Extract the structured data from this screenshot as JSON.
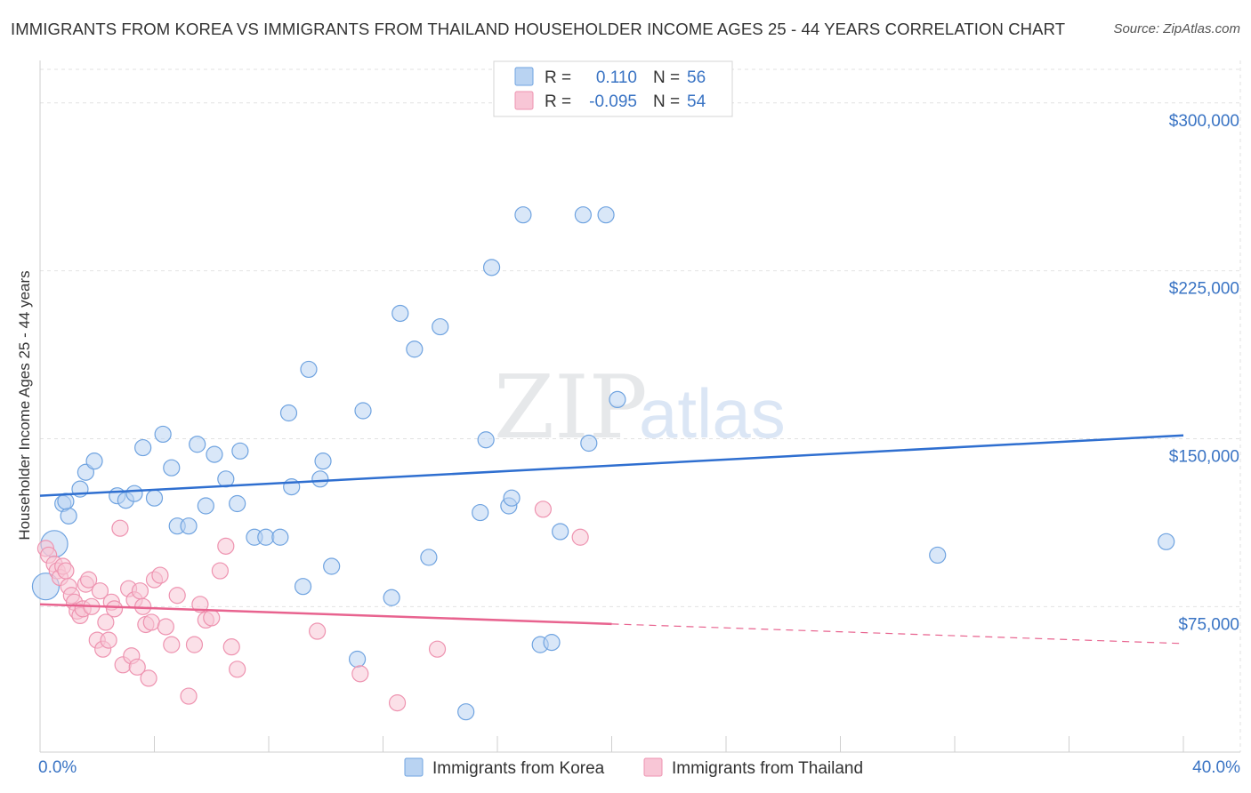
{
  "title": "IMMIGRANTS FROM KOREA VS IMMIGRANTS FROM THAILAND HOUSEHOLDER INCOME AGES 25 - 44 YEARS CORRELATION CHART",
  "source": "Source: ZipAtlas.com",
  "watermark": {
    "zip": "ZIP",
    "atlas": "atlas"
  },
  "legend": {
    "r_label": "R =",
    "n_label": "N =",
    "rows": [
      {
        "r": "0.110",
        "n": "56"
      },
      {
        "r": "-0.095",
        "n": "54"
      }
    ]
  },
  "chart_data": {
    "type": "scatter",
    "title": "IMMIGRANTS FROM KOREA VS IMMIGRANTS FROM THAILAND HOUSEHOLDER INCOME AGES 25 - 44 YEARS CORRELATION CHART",
    "xlabel": "",
    "ylabel": "Householder Income Ages 25 - 44 years",
    "xlim": [
      0,
      40
    ],
    "ylim": [
      10000,
      315000
    ],
    "x_tick_labels": {
      "min": "0.0%",
      "max": "40.0%"
    },
    "y_ticks": [
      {
        "value": 75000,
        "label": "$75,000"
      },
      {
        "value": 150000,
        "label": "$150,000"
      },
      {
        "value": 225000,
        "label": "$225,000"
      },
      {
        "value": 300000,
        "label": "$300,000"
      }
    ],
    "grid": true,
    "legend_position": "top-center",
    "series": [
      {
        "name": "Immigrants from Korea",
        "color": "#6fa3e0",
        "fill": "#b9d3f2",
        "line_color": "#2f6fd0",
        "r": 0.11,
        "n": 56,
        "trend": {
          "x": [
            0,
            40
          ],
          "y": [
            124500,
            151500
          ],
          "dashed_from": null
        },
        "points": [
          [
            0.2,
            84000
          ],
          [
            0.5,
            103000
          ],
          [
            0.8,
            121000
          ],
          [
            1.0,
            115500
          ],
          [
            0.9,
            122000
          ],
          [
            1.4,
            127500
          ],
          [
            1.6,
            135000
          ],
          [
            1.9,
            140000
          ],
          [
            2.7,
            124500
          ],
          [
            3.0,
            122500
          ],
          [
            3.3,
            125500
          ],
          [
            3.6,
            146000
          ],
          [
            4.0,
            123500
          ],
          [
            4.3,
            152000
          ],
          [
            4.6,
            137000
          ],
          [
            4.8,
            111000
          ],
          [
            5.2,
            111000
          ],
          [
            5.5,
            147500
          ],
          [
            5.8,
            120000
          ],
          [
            6.1,
            143000
          ],
          [
            6.5,
            132000
          ],
          [
            6.9,
            121000
          ],
          [
            7.0,
            144500
          ],
          [
            7.5,
            106000
          ],
          [
            7.9,
            106000
          ],
          [
            8.4,
            106000
          ],
          [
            8.7,
            161500
          ],
          [
            8.8,
            128500
          ],
          [
            9.2,
            84000
          ],
          [
            9.4,
            181000
          ],
          [
            9.8,
            132000
          ],
          [
            9.9,
            140000
          ],
          [
            10.2,
            93000
          ],
          [
            11.1,
            51500
          ],
          [
            11.3,
            162500
          ],
          [
            12.3,
            79000
          ],
          [
            12.6,
            206000
          ],
          [
            13.1,
            190000
          ],
          [
            13.6,
            97000
          ],
          [
            14.0,
            200000
          ],
          [
            14.9,
            28000
          ],
          [
            15.4,
            117000
          ],
          [
            15.6,
            149500
          ],
          [
            15.8,
            226500
          ],
          [
            16.4,
            120000
          ],
          [
            16.5,
            123500
          ],
          [
            16.9,
            250000
          ],
          [
            17.5,
            58000
          ],
          [
            17.9,
            59000
          ],
          [
            18.2,
            108500
          ],
          [
            19.0,
            250000
          ],
          [
            19.2,
            148000
          ],
          [
            19.8,
            250000
          ],
          [
            20.2,
            167500
          ],
          [
            31.4,
            98000
          ],
          [
            39.4,
            104000
          ]
        ]
      },
      {
        "name": "Immigrants from Thailand",
        "color": "#ee93b0",
        "fill": "#f8c6d6",
        "line_color": "#e8638f",
        "r": -0.095,
        "n": 54,
        "trend": {
          "x": [
            0,
            40
          ],
          "y": [
            76000,
            58500
          ],
          "solid_until": 20
        },
        "points": [
          [
            0.2,
            101000
          ],
          [
            0.3,
            98000
          ],
          [
            0.5,
            94000
          ],
          [
            0.6,
            91000
          ],
          [
            0.7,
            88000
          ],
          [
            0.8,
            93000
          ],
          [
            0.9,
            91000
          ],
          [
            1.0,
            84000
          ],
          [
            1.1,
            80000
          ],
          [
            1.2,
            77000
          ],
          [
            1.3,
            73000
          ],
          [
            1.4,
            71000
          ],
          [
            1.5,
            74000
          ],
          [
            1.6,
            85000
          ],
          [
            1.7,
            87000
          ],
          [
            1.8,
            75000
          ],
          [
            2.0,
            60000
          ],
          [
            2.1,
            82000
          ],
          [
            2.2,
            56000
          ],
          [
            2.3,
            68000
          ],
          [
            2.4,
            60000
          ],
          [
            2.5,
            77000
          ],
          [
            2.6,
            74000
          ],
          [
            2.8,
            110000
          ],
          [
            2.9,
            49000
          ],
          [
            3.1,
            83000
          ],
          [
            3.2,
            53000
          ],
          [
            3.3,
            78000
          ],
          [
            3.4,
            48000
          ],
          [
            3.5,
            82000
          ],
          [
            3.6,
            75000
          ],
          [
            3.7,
            67000
          ],
          [
            3.8,
            43000
          ],
          [
            3.9,
            68000
          ],
          [
            4.0,
            87000
          ],
          [
            4.2,
            89000
          ],
          [
            4.4,
            66000
          ],
          [
            4.6,
            58000
          ],
          [
            4.8,
            80000
          ],
          [
            5.2,
            35000
          ],
          [
            5.4,
            58000
          ],
          [
            5.6,
            76000
          ],
          [
            5.8,
            69000
          ],
          [
            6.0,
            70000
          ],
          [
            6.3,
            91000
          ],
          [
            6.5,
            102000
          ],
          [
            6.7,
            57000
          ],
          [
            6.9,
            47000
          ],
          [
            9.7,
            64000
          ],
          [
            11.2,
            45000
          ],
          [
            12.5,
            32000
          ],
          [
            13.9,
            56000
          ],
          [
            17.6,
            118500
          ],
          [
            18.9,
            106000
          ]
        ]
      }
    ]
  }
}
